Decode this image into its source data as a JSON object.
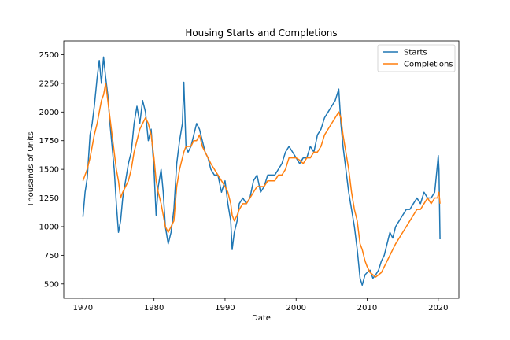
{
  "chart_data": {
    "type": "line",
    "title": "Housing Starts and Completions",
    "xlabel": "Date",
    "ylabel": "Thousands of Units",
    "xlim": [
      1967.3,
      2022.9
    ],
    "ylim": [
      375,
      2620
    ],
    "x_ticks": [
      1970,
      1980,
      1990,
      2000,
      2010,
      2020
    ],
    "y_ticks": [
      500,
      750,
      1000,
      1250,
      1500,
      1750,
      2000,
      2250,
      2500
    ],
    "grid": false,
    "legend_position": "top-right",
    "series": [
      {
        "name": "Starts",
        "color": "#1f77b4",
        "points": [
          [
            1970.0,
            1085
          ],
          [
            1970.3,
            1300
          ],
          [
            1970.6,
            1420
          ],
          [
            1971.0,
            1800
          ],
          [
            1971.3,
            1900
          ],
          [
            1971.6,
            2050
          ],
          [
            1972.0,
            2300
          ],
          [
            1972.3,
            2450
          ],
          [
            1972.6,
            2250
          ],
          [
            1972.9,
            2480
          ],
          [
            1973.2,
            2300
          ],
          [
            1973.5,
            2150
          ],
          [
            1973.8,
            1900
          ],
          [
            1974.1,
            1700
          ],
          [
            1974.4,
            1500
          ],
          [
            1974.7,
            1200
          ],
          [
            1975.0,
            950
          ],
          [
            1975.3,
            1050
          ],
          [
            1975.6,
            1250
          ],
          [
            1976.0,
            1400
          ],
          [
            1976.4,
            1550
          ],
          [
            1976.8,
            1650
          ],
          [
            1977.2,
            1900
          ],
          [
            1977.6,
            2050
          ],
          [
            1978.0,
            1900
          ],
          [
            1978.4,
            2100
          ],
          [
            1978.8,
            2000
          ],
          [
            1979.2,
            1750
          ],
          [
            1979.6,
            1850
          ],
          [
            1980.0,
            1500
          ],
          [
            1980.3,
            1100
          ],
          [
            1980.6,
            1350
          ],
          [
            1981.0,
            1500
          ],
          [
            1981.3,
            1300
          ],
          [
            1981.6,
            1000
          ],
          [
            1982.0,
            850
          ],
          [
            1982.4,
            950
          ],
          [
            1982.8,
            1150
          ],
          [
            1983.2,
            1550
          ],
          [
            1983.6,
            1750
          ],
          [
            1984.0,
            1900
          ],
          [
            1984.2,
            2260
          ],
          [
            1984.5,
            1700
          ],
          [
            1984.8,
            1650
          ],
          [
            1985.2,
            1700
          ],
          [
            1985.6,
            1800
          ],
          [
            1986.0,
            1900
          ],
          [
            1986.4,
            1850
          ],
          [
            1986.8,
            1750
          ],
          [
            1987.2,
            1650
          ],
          [
            1987.6,
            1600
          ],
          [
            1988.0,
            1500
          ],
          [
            1988.5,
            1450
          ],
          [
            1989.0,
            1450
          ],
          [
            1989.5,
            1300
          ],
          [
            1990.0,
            1400
          ],
          [
            1990.4,
            1200
          ],
          [
            1990.8,
            1050
          ],
          [
            1991.0,
            800
          ],
          [
            1991.3,
            950
          ],
          [
            1991.7,
            1050
          ],
          [
            1992.0,
            1200
          ],
          [
            1992.5,
            1250
          ],
          [
            1993.0,
            1200
          ],
          [
            1993.5,
            1250
          ],
          [
            1994.0,
            1400
          ],
          [
            1994.5,
            1450
          ],
          [
            1995.0,
            1300
          ],
          [
            1995.5,
            1350
          ],
          [
            1996.0,
            1450
          ],
          [
            1996.5,
            1450
          ],
          [
            1997.0,
            1450
          ],
          [
            1997.5,
            1500
          ],
          [
            1998.0,
            1550
          ],
          [
            1998.5,
            1650
          ],
          [
            1999.0,
            1700
          ],
          [
            1999.5,
            1650
          ],
          [
            2000.0,
            1600
          ],
          [
            2000.5,
            1550
          ],
          [
            2001.0,
            1600
          ],
          [
            2001.5,
            1600
          ],
          [
            2002.0,
            1700
          ],
          [
            2002.5,
            1650
          ],
          [
            2003.0,
            1800
          ],
          [
            2003.5,
            1850
          ],
          [
            2004.0,
            1950
          ],
          [
            2004.5,
            2000
          ],
          [
            2005.0,
            2050
          ],
          [
            2005.5,
            2100
          ],
          [
            2006.0,
            2200
          ],
          [
            2006.3,
            1900
          ],
          [
            2006.6,
            1700
          ],
          [
            2007.0,
            1500
          ],
          [
            2007.4,
            1300
          ],
          [
            2007.8,
            1150
          ],
          [
            2008.2,
            1000
          ],
          [
            2008.6,
            800
          ],
          [
            2009.0,
            550
          ],
          [
            2009.3,
            490
          ],
          [
            2009.7,
            580
          ],
          [
            2010.0,
            600
          ],
          [
            2010.4,
            620
          ],
          [
            2010.8,
            550
          ],
          [
            2011.2,
            580
          ],
          [
            2011.6,
            620
          ],
          [
            2012.0,
            700
          ],
          [
            2012.4,
            750
          ],
          [
            2012.8,
            850
          ],
          [
            2013.2,
            950
          ],
          [
            2013.6,
            900
          ],
          [
            2014.0,
            1000
          ],
          [
            2014.5,
            1050
          ],
          [
            2015.0,
            1100
          ],
          [
            2015.5,
            1150
          ],
          [
            2016.0,
            1150
          ],
          [
            2016.5,
            1200
          ],
          [
            2017.0,
            1250
          ],
          [
            2017.5,
            1200
          ],
          [
            2018.0,
            1300
          ],
          [
            2018.5,
            1250
          ],
          [
            2019.0,
            1250
          ],
          [
            2019.5,
            1300
          ],
          [
            2019.9,
            1550
          ],
          [
            2020.0,
            1620
          ],
          [
            2020.1,
            1500
          ],
          [
            2020.25,
            890
          ]
        ]
      },
      {
        "name": "Completions",
        "color": "#ff7f0e",
        "points": [
          [
            1970.0,
            1400
          ],
          [
            1970.3,
            1450
          ],
          [
            1970.6,
            1500
          ],
          [
            1971.0,
            1600
          ],
          [
            1971.3,
            1700
          ],
          [
            1971.6,
            1800
          ],
          [
            1972.0,
            1900
          ],
          [
            1972.3,
            2000
          ],
          [
            1972.6,
            2100
          ],
          [
            1972.9,
            2150
          ],
          [
            1973.2,
            2250
          ],
          [
            1973.5,
            2100
          ],
          [
            1973.8,
            1950
          ],
          [
            1974.1,
            1800
          ],
          [
            1974.4,
            1650
          ],
          [
            1974.7,
            1500
          ],
          [
            1975.0,
            1400
          ],
          [
            1975.3,
            1250
          ],
          [
            1975.6,
            1300
          ],
          [
            1976.0,
            1350
          ],
          [
            1976.4,
            1400
          ],
          [
            1976.8,
            1500
          ],
          [
            1977.2,
            1650
          ],
          [
            1977.6,
            1750
          ],
          [
            1978.0,
            1850
          ],
          [
            1978.4,
            1900
          ],
          [
            1978.8,
            1950
          ],
          [
            1979.2,
            1900
          ],
          [
            1979.6,
            1800
          ],
          [
            1980.0,
            1600
          ],
          [
            1980.3,
            1400
          ],
          [
            1980.6,
            1300
          ],
          [
            1981.0,
            1200
          ],
          [
            1981.3,
            1100
          ],
          [
            1981.6,
            1000
          ],
          [
            1982.0,
            950
          ],
          [
            1982.4,
            1000
          ],
          [
            1982.8,
            1050
          ],
          [
            1983.2,
            1350
          ],
          [
            1983.6,
            1500
          ],
          [
            1984.0,
            1600
          ],
          [
            1984.2,
            1650
          ],
          [
            1984.5,
            1700
          ],
          [
            1984.8,
            1700
          ],
          [
            1985.2,
            1700
          ],
          [
            1985.6,
            1750
          ],
          [
            1986.0,
            1750
          ],
          [
            1986.4,
            1800
          ],
          [
            1986.8,
            1700
          ],
          [
            1987.2,
            1650
          ],
          [
            1987.6,
            1600
          ],
          [
            1988.0,
            1550
          ],
          [
            1988.5,
            1500
          ],
          [
            1989.0,
            1450
          ],
          [
            1989.5,
            1400
          ],
          [
            1990.0,
            1350
          ],
          [
            1990.4,
            1300
          ],
          [
            1990.8,
            1200
          ],
          [
            1991.0,
            1100
          ],
          [
            1991.3,
            1050
          ],
          [
            1991.7,
            1100
          ],
          [
            1992.0,
            1150
          ],
          [
            1992.5,
            1200
          ],
          [
            1993.0,
            1200
          ],
          [
            1993.5,
            1250
          ],
          [
            1994.0,
            1300
          ],
          [
            1994.5,
            1350
          ],
          [
            1995.0,
            1350
          ],
          [
            1995.5,
            1350
          ],
          [
            1996.0,
            1400
          ],
          [
            1996.5,
            1400
          ],
          [
            1997.0,
            1400
          ],
          [
            1997.5,
            1450
          ],
          [
            1998.0,
            1450
          ],
          [
            1998.5,
            1500
          ],
          [
            1999.0,
            1600
          ],
          [
            1999.5,
            1600
          ],
          [
            2000.0,
            1600
          ],
          [
            2000.5,
            1580
          ],
          [
            2001.0,
            1550
          ],
          [
            2001.5,
            1600
          ],
          [
            2002.0,
            1600
          ],
          [
            2002.5,
            1650
          ],
          [
            2003.0,
            1650
          ],
          [
            2003.5,
            1700
          ],
          [
            2004.0,
            1800
          ],
          [
            2004.5,
            1850
          ],
          [
            2005.0,
            1900
          ],
          [
            2005.5,
            1950
          ],
          [
            2006.0,
            2000
          ],
          [
            2006.3,
            1950
          ],
          [
            2006.6,
            1800
          ],
          [
            2007.0,
            1650
          ],
          [
            2007.4,
            1500
          ],
          [
            2007.8,
            1300
          ],
          [
            2008.2,
            1150
          ],
          [
            2008.6,
            1050
          ],
          [
            2009.0,
            850
          ],
          [
            2009.3,
            800
          ],
          [
            2009.7,
            700
          ],
          [
            2010.0,
            650
          ],
          [
            2010.4,
            600
          ],
          [
            2010.8,
            580
          ],
          [
            2011.2,
            560
          ],
          [
            2011.6,
            580
          ],
          [
            2012.0,
            600
          ],
          [
            2012.4,
            650
          ],
          [
            2012.8,
            700
          ],
          [
            2013.2,
            750
          ],
          [
            2013.6,
            800
          ],
          [
            2014.0,
            850
          ],
          [
            2014.5,
            900
          ],
          [
            2015.0,
            950
          ],
          [
            2015.5,
            1000
          ],
          [
            2016.0,
            1050
          ],
          [
            2016.5,
            1100
          ],
          [
            2017.0,
            1150
          ],
          [
            2017.5,
            1150
          ],
          [
            2018.0,
            1200
          ],
          [
            2018.5,
            1250
          ],
          [
            2019.0,
            1200
          ],
          [
            2019.5,
            1250
          ],
          [
            2019.9,
            1250
          ],
          [
            2020.0,
            1280
          ],
          [
            2020.1,
            1300
          ],
          [
            2020.25,
            1200
          ]
        ]
      }
    ]
  }
}
